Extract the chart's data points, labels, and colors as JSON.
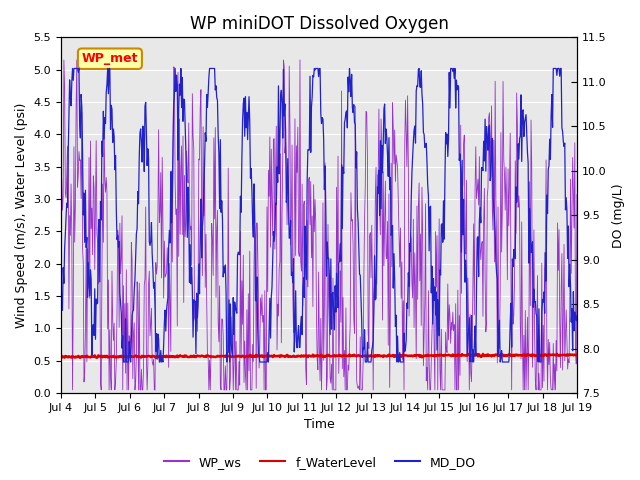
{
  "title": "WP miniDOT Dissolved Oxygen",
  "xlabel": "Time",
  "ylabel_left": "Wind Speed (m/s), Water Level (psi)",
  "ylabel_right": "DO (mg/L)",
  "ylim_left": [
    0.0,
    5.5
  ],
  "ylim_right": [
    7.5,
    11.5
  ],
  "yticks_left": [
    0.0,
    0.5,
    1.0,
    1.5,
    2.0,
    2.5,
    3.0,
    3.5,
    4.0,
    4.5,
    5.0,
    5.5
  ],
  "yticks_right": [
    7.5,
    8.0,
    8.5,
    9.0,
    9.5,
    10.0,
    10.5,
    11.0,
    11.5
  ],
  "xtick_labels": [
    "Jul 4",
    "Jul 5",
    "Jul 6",
    "Jul 7",
    "Jul 8",
    "Jul 9",
    "Jul 10",
    "Jul 11",
    "Jul 12",
    "Jul 13",
    "Jul 14",
    "Jul 15",
    "Jul 16",
    "Jul 17",
    "Jul 18",
    "Jul 19"
  ],
  "plot_bg_color": "#e8e8e8",
  "wp_ws_color": "#9933cc",
  "f_waterlevel_color": "#dd0000",
  "md_do_color": "#2222cc",
  "annotation_text": "WP_met",
  "annotation_bg": "#ffffaa",
  "annotation_edge": "#cc8800",
  "legend_labels": [
    "WP_ws",
    "f_WaterLevel",
    "MD_DO"
  ],
  "title_fontsize": 12,
  "axis_fontsize": 9,
  "tick_fontsize": 8
}
